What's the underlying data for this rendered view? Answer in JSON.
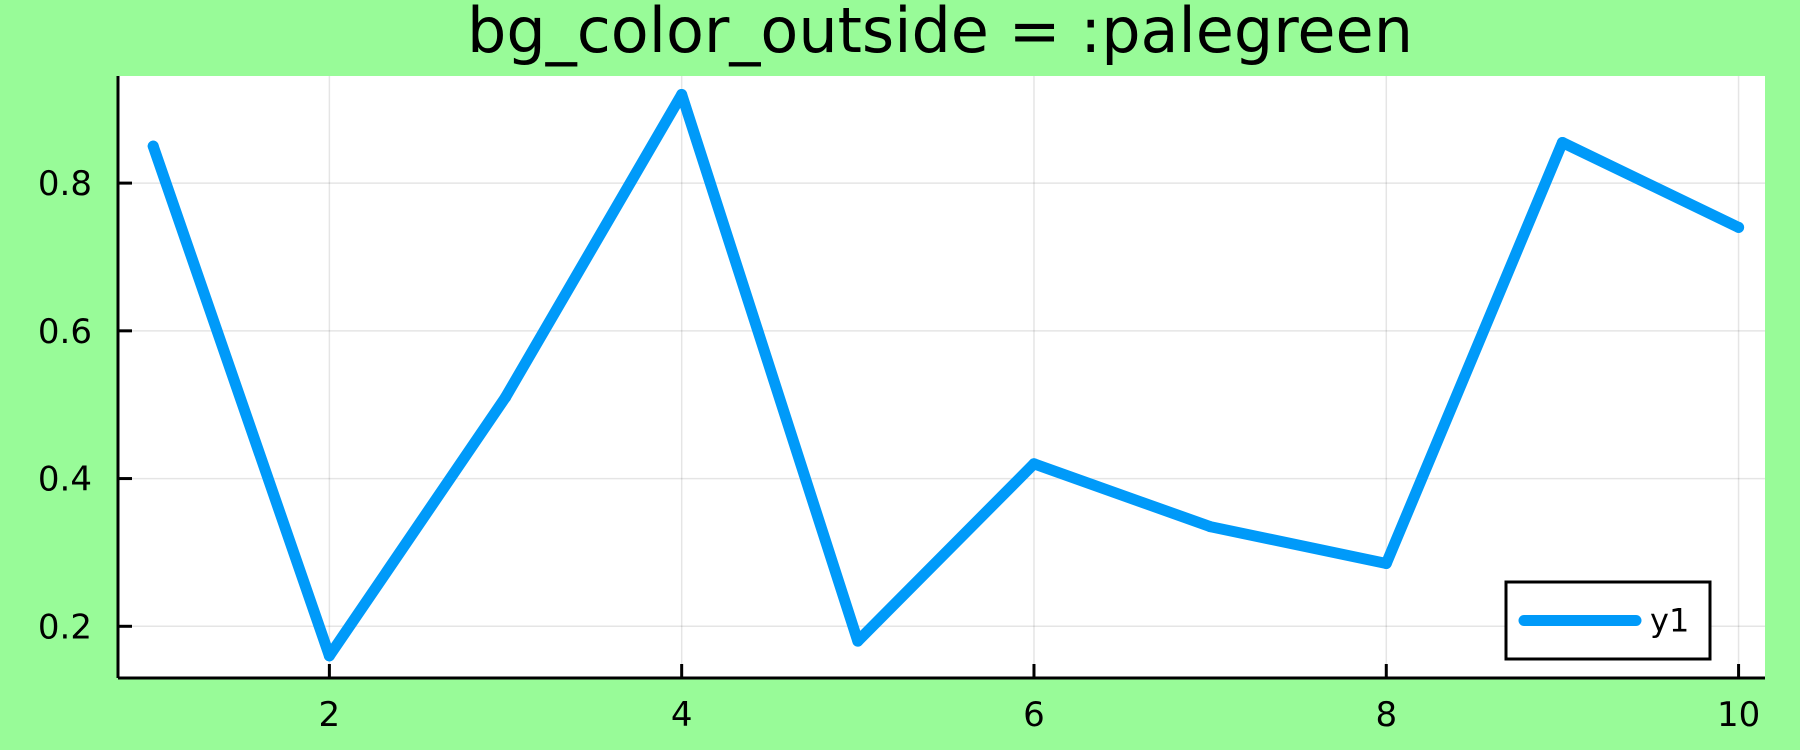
{
  "colors": {
    "outside_background": "#98fb98",
    "plot_background": "#ffffff",
    "series_line": "#009af9"
  },
  "chart_data": {
    "type": "line",
    "title": "bg_color_outside = :palegreen",
    "xlabel": "",
    "ylabel": "",
    "xlim": [
      0.8,
      10.15
    ],
    "ylim": [
      0.13,
      0.945
    ],
    "xticks": [
      2,
      4,
      6,
      8,
      10
    ],
    "xtick_labels": [
      "2",
      "4",
      "6",
      "8",
      "10"
    ],
    "yticks": [
      0.2,
      0.4,
      0.6,
      0.8
    ],
    "ytick_labels": [
      "0.2",
      "0.4",
      "0.6",
      "0.8"
    ],
    "grid": true,
    "legend_position": "bottom-right",
    "series": [
      {
        "name": "y1",
        "color": "#009af9",
        "x": [
          1,
          2,
          3,
          4,
          5,
          6,
          7,
          8,
          9,
          10
        ],
        "y": [
          0.85,
          0.16,
          0.51,
          0.92,
          0.18,
          0.42,
          0.335,
          0.285,
          0.855,
          0.74
        ]
      }
    ]
  }
}
